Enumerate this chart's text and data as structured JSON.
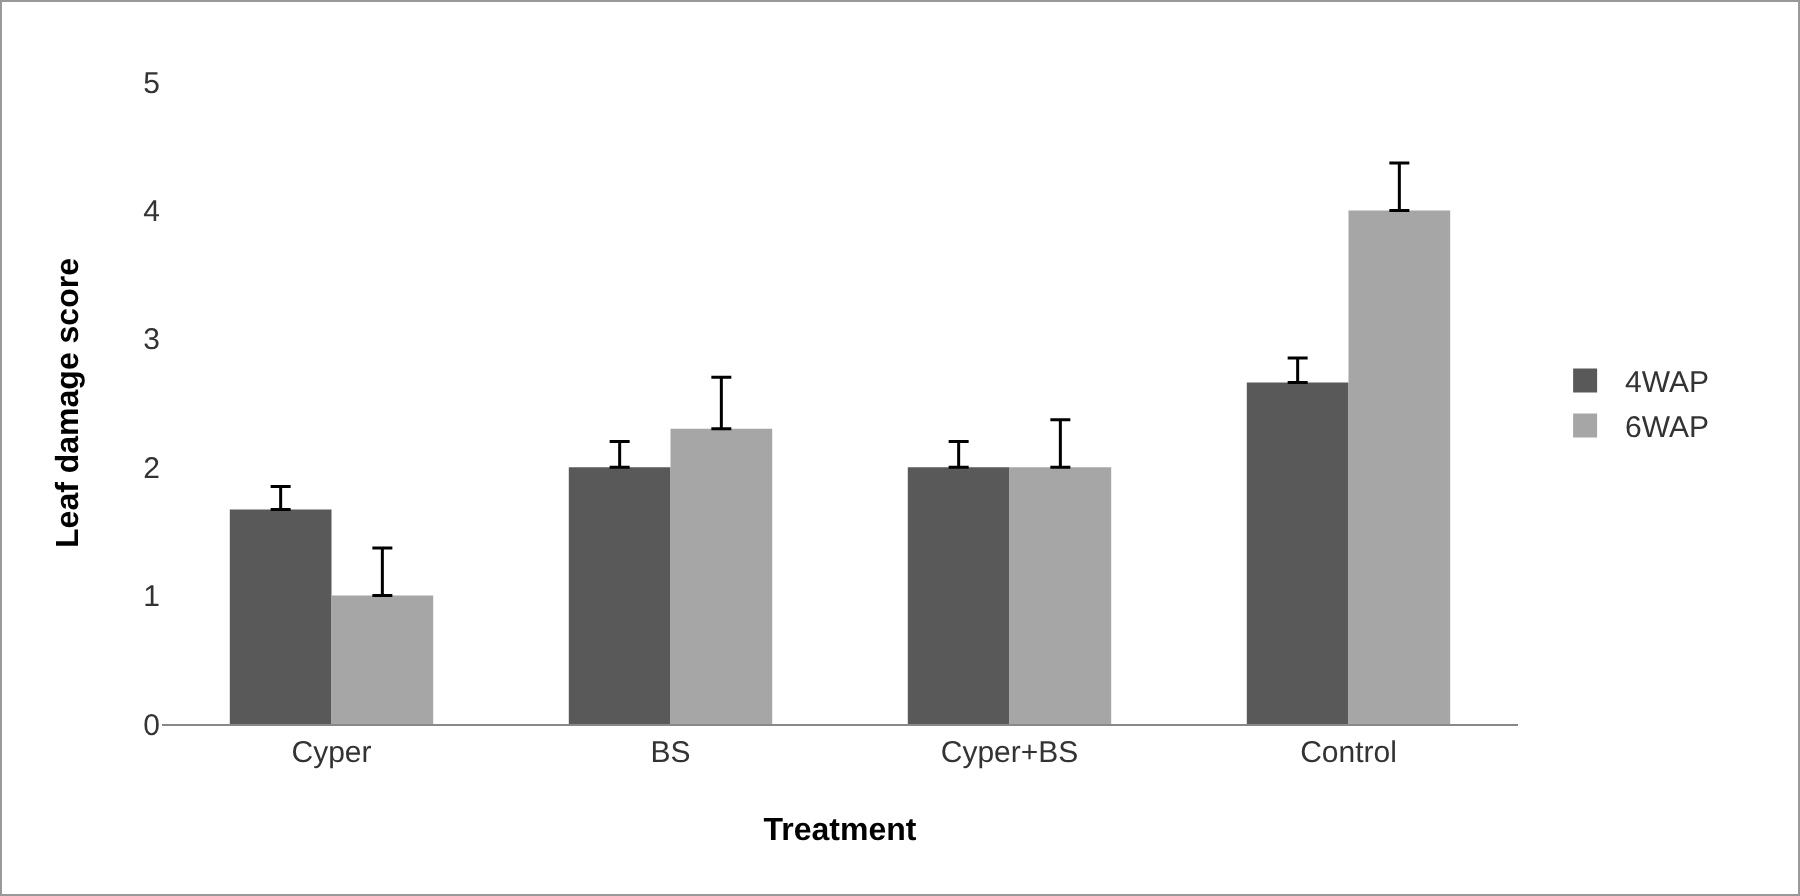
{
  "chart_data": {
    "type": "bar",
    "xlabel": "Treatment",
    "ylabel": "Leaf damage score",
    "categories": [
      "Cyper",
      "BS",
      "Cyper+BS",
      "Control"
    ],
    "series": [
      {
        "name": "4WAP",
        "color": "#595959",
        "values": [
          1.67,
          2.0,
          2.0,
          2.66
        ],
        "errors": [
          [
            1.67,
            1.85
          ],
          [
            2.0,
            2.2
          ],
          [
            2.0,
            2.2
          ],
          [
            2.66,
            2.85
          ]
        ]
      },
      {
        "name": "6WAP",
        "color": "#a6a6a6",
        "values": [
          1.0,
          2.3,
          2.0,
          4.0
        ],
        "errors": [
          [
            1.0,
            1.37
          ],
          [
            2.3,
            2.7
          ],
          [
            2.0,
            2.37
          ],
          [
            4.0,
            4.37
          ]
        ]
      }
    ],
    "ylim": [
      0,
      5
    ],
    "yticks": [
      0,
      1,
      2,
      3,
      4,
      5
    ],
    "grid": false,
    "legend": "right"
  }
}
